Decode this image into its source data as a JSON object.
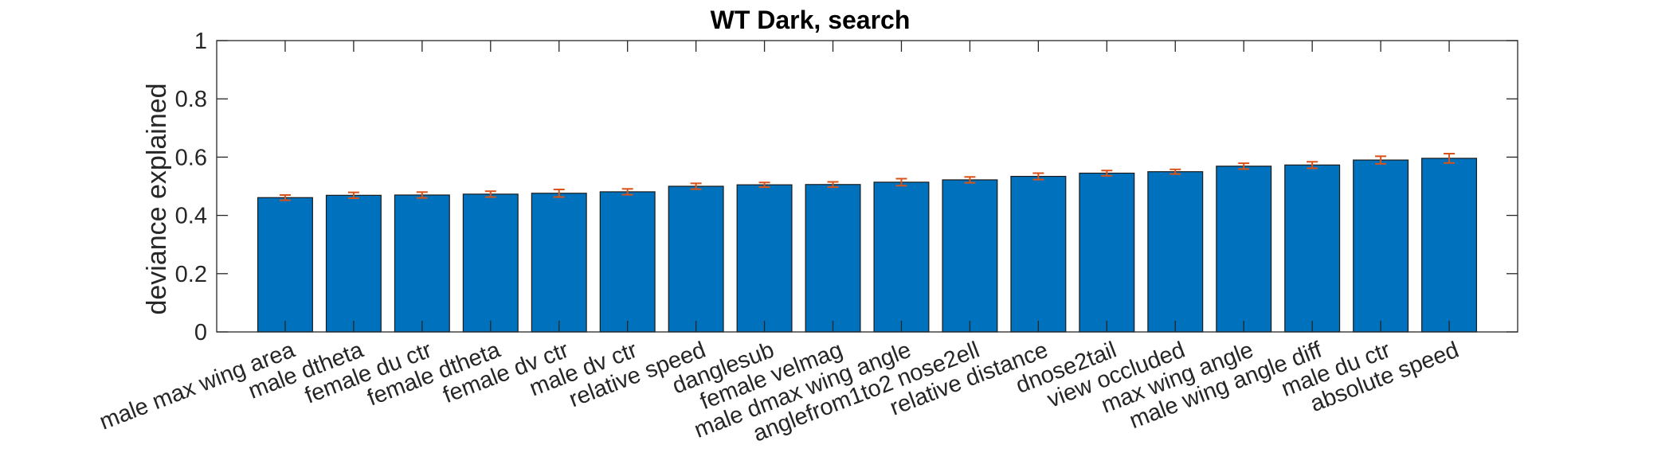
{
  "chart_data": {
    "type": "bar",
    "title": "WT Dark, search",
    "xlabel": "",
    "ylabel": "deviance explained",
    "ylim": [
      0,
      1
    ],
    "yticks": [
      0,
      0.2,
      0.4,
      0.6,
      0.8,
      1
    ],
    "ytick_labels": [
      "0",
      "0.2",
      "0.4",
      "0.6",
      "0.8",
      "1"
    ],
    "grid": false,
    "bar_color": "#0072BD",
    "error_color": "#D95319",
    "categories": [
      "male max wing area",
      "male dtheta",
      "female du ctr",
      "female dtheta",
      "female dv ctr",
      "male dv ctr",
      "relative speed",
      "danglesub",
      "female velmag",
      "male dmax wing angle",
      "anglefrom1to2 nose2ell",
      "relative distance",
      "dnose2tail",
      "view occluded",
      "max wing angle",
      "male wing angle diff",
      "male du ctr",
      "absolute speed"
    ],
    "values": [
      0.461,
      0.469,
      0.47,
      0.473,
      0.476,
      0.481,
      0.5,
      0.505,
      0.506,
      0.514,
      0.522,
      0.534,
      0.545,
      0.55,
      0.569,
      0.573,
      0.59,
      0.596
    ],
    "errors": [
      0.009,
      0.01,
      0.01,
      0.01,
      0.013,
      0.01,
      0.01,
      0.008,
      0.009,
      0.012,
      0.01,
      0.011,
      0.009,
      0.008,
      0.01,
      0.011,
      0.013,
      0.016
    ]
  }
}
